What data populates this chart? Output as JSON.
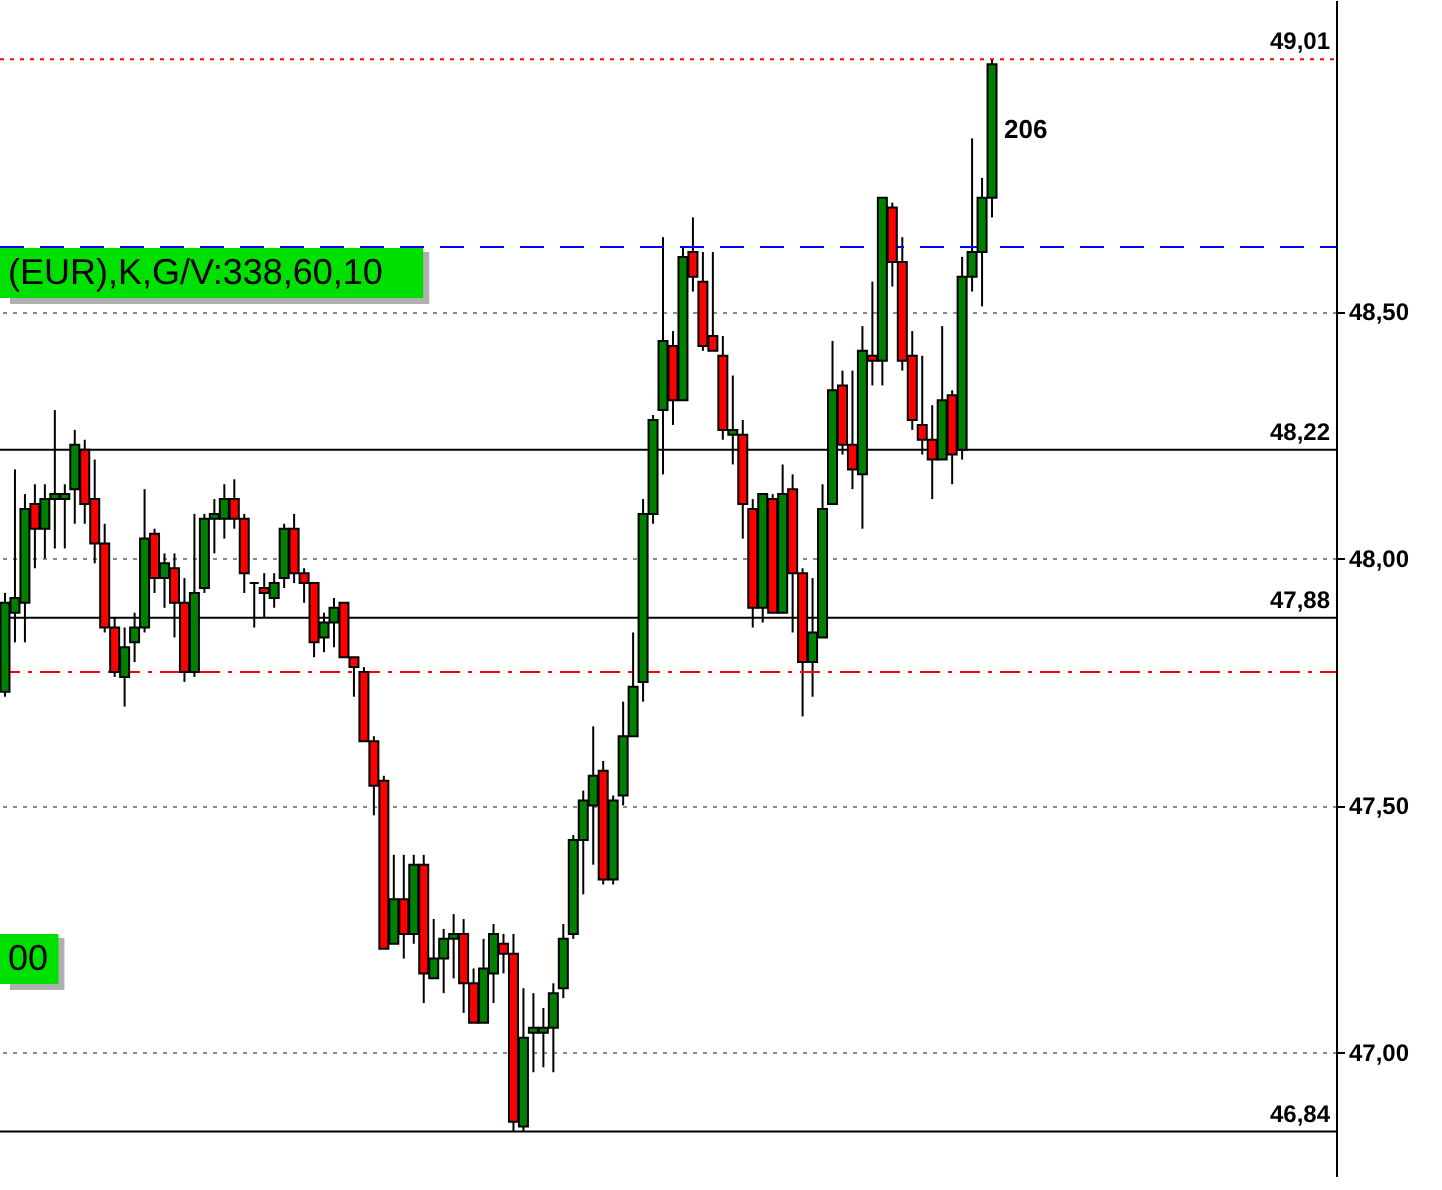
{
  "chart_data": {
    "type": "candlestick",
    "categories": [
      null,
      null,
      null,
      null,
      null,
      null,
      null,
      null,
      null,
      null,
      null,
      null,
      null,
      null,
      null,
      null,
      null,
      null,
      null,
      null,
      null,
      null,
      null,
      null,
      null,
      null,
      null,
      null,
      null,
      null,
      null,
      null,
      null,
      null,
      null,
      null,
      null,
      null,
      null,
      null,
      null,
      null,
      null,
      null,
      null,
      null,
      null,
      null,
      null,
      null,
      null,
      null,
      null,
      null,
      null,
      null,
      null,
      null,
      null,
      null,
      null,
      null,
      null,
      null,
      null,
      null,
      null,
      null,
      null,
      null,
      null,
      null,
      null,
      null,
      null,
      null,
      null,
      null,
      null,
      null,
      null,
      null,
      null,
      null,
      null,
      null,
      null,
      null,
      null,
      null,
      null,
      null,
      null,
      null,
      null,
      null,
      null,
      null,
      null,
      null,
      null,
      null,
      null,
      null,
      null,
      null,
      null,
      null,
      null,
      null,
      null,
      null,
      null,
      null,
      null,
      null,
      null,
      null,
      null,
      null,
      null,
      null,
      null,
      null,
      null,
      null,
      null,
      null,
      null,
      null,
      null,
      null,
      null,
      null
    ],
    "ohlc": [
      [
        47.73,
        47.93,
        47.72,
        47.91
      ],
      [
        47.89,
        48.18,
        47.83,
        47.92
      ],
      [
        47.91,
        48.13,
        47.83,
        48.1
      ],
      [
        48.11,
        48.15,
        47.98,
        48.06
      ],
      [
        48.06,
        48.15,
        48.0,
        48.12
      ],
      [
        48.12,
        48.3,
        48.02,
        48.13
      ],
      [
        48.12,
        48.15,
        48.02,
        48.13
      ],
      [
        48.14,
        48.26,
        48.07,
        48.23
      ],
      [
        48.22,
        48.24,
        48.07,
        48.11
      ],
      [
        48.12,
        48.2,
        47.99,
        48.03
      ],
      [
        48.03,
        48.07,
        47.85,
        47.86
      ],
      [
        47.86,
        47.88,
        47.76,
        47.77
      ],
      [
        47.76,
        47.86,
        47.7,
        47.82
      ],
      [
        47.83,
        47.89,
        47.79,
        47.86
      ],
      [
        47.86,
        48.14,
        47.85,
        48.04
      ],
      [
        48.05,
        48.06,
        47.93,
        47.96
      ],
      [
        47.96,
        48.01,
        47.9,
        47.99
      ],
      [
        47.98,
        48.01,
        47.84,
        47.91
      ],
      [
        47.91,
        47.96,
        47.75,
        47.77
      ],
      [
        47.77,
        48.09,
        47.76,
        47.93
      ],
      [
        47.94,
        48.09,
        47.93,
        48.08
      ],
      [
        48.08,
        48.12,
        48.01,
        48.09
      ],
      [
        48.08,
        48.15,
        48.04,
        48.12
      ],
      [
        48.12,
        48.16,
        48.06,
        48.08
      ],
      [
        48.08,
        48.09,
        47.93,
        47.97
      ],
      [
        47.95,
        47.95,
        47.86,
        47.95
      ],
      [
        47.94,
        47.97,
        47.88,
        47.93
      ],
      [
        47.92,
        47.97,
        47.9,
        47.95
      ],
      [
        47.96,
        48.07,
        47.94,
        48.06
      ],
      [
        48.06,
        48.09,
        47.95,
        47.97
      ],
      [
        47.97,
        47.98,
        47.91,
        47.95
      ],
      [
        47.95,
        47.95,
        47.8,
        47.83
      ],
      [
        47.84,
        47.89,
        47.81,
        47.87
      ],
      [
        47.87,
        47.92,
        47.82,
        47.9
      ],
      [
        47.91,
        47.91,
        47.8,
        47.8
      ],
      [
        47.8,
        47.8,
        47.72,
        47.78
      ],
      [
        47.77,
        47.78,
        47.63,
        47.63
      ],
      [
        47.63,
        47.64,
        47.48,
        47.54
      ],
      [
        47.55,
        47.56,
        47.21,
        47.21
      ],
      [
        47.22,
        47.4,
        47.22,
        47.31
      ],
      [
        47.31,
        47.4,
        47.19,
        47.24
      ],
      [
        47.24,
        47.4,
        47.22,
        47.38
      ],
      [
        47.38,
        47.4,
        47.1,
        47.16
      ],
      [
        47.15,
        47.27,
        47.15,
        47.19
      ],
      [
        47.19,
        47.25,
        47.12,
        47.23
      ],
      [
        47.23,
        47.28,
        47.15,
        47.24
      ],
      [
        47.24,
        47.27,
        47.08,
        47.14
      ],
      [
        47.14,
        47.17,
        47.06,
        47.06
      ],
      [
        47.06,
        47.23,
        47.06,
        47.17
      ],
      [
        47.16,
        47.26,
        47.1,
        47.24
      ],
      [
        47.22,
        47.24,
        47.16,
        47.2
      ],
      [
        47.2,
        47.24,
        46.84,
        46.86
      ],
      [
        46.85,
        47.13,
        46.84,
        47.03
      ],
      [
        47.04,
        47.12,
        46.96,
        47.05
      ],
      [
        47.04,
        47.09,
        46.97,
        47.05
      ],
      [
        47.05,
        47.14,
        46.96,
        47.12
      ],
      [
        47.13,
        47.26,
        47.11,
        47.23
      ],
      [
        47.24,
        47.44,
        47.23,
        47.43
      ],
      [
        47.43,
        47.53,
        47.32,
        47.51
      ],
      [
        47.5,
        47.66,
        47.38,
        47.56
      ],
      [
        47.57,
        47.59,
        47.34,
        47.35
      ],
      [
        47.35,
        47.52,
        47.34,
        47.51
      ],
      [
        47.52,
        47.71,
        47.5,
        47.64
      ],
      [
        47.64,
        47.85,
        47.64,
        47.74
      ],
      [
        47.75,
        48.12,
        47.71,
        48.09
      ],
      [
        48.09,
        48.29,
        48.07,
        48.28
      ],
      [
        48.3,
        48.65,
        48.17,
        48.44
      ],
      [
        48.43,
        48.46,
        48.27,
        48.32
      ],
      [
        48.32,
        48.63,
        48.32,
        48.61
      ],
      [
        48.62,
        48.69,
        48.54,
        48.57
      ],
      [
        48.56,
        48.62,
        48.42,
        48.43
      ],
      [
        48.45,
        48.62,
        48.42,
        48.42
      ],
      [
        48.41,
        48.45,
        48.24,
        48.26
      ],
      [
        48.25,
        48.37,
        48.19,
        48.26
      ],
      [
        48.25,
        48.28,
        48.04,
        48.11
      ],
      [
        48.1,
        48.12,
        47.86,
        47.9
      ],
      [
        47.9,
        48.13,
        47.87,
        48.13
      ],
      [
        48.12,
        48.13,
        47.89,
        47.89
      ],
      [
        47.89,
        48.19,
        47.89,
        48.13
      ],
      [
        48.14,
        48.17,
        47.85,
        47.97
      ],
      [
        47.97,
        47.98,
        47.68,
        47.79
      ],
      [
        47.79,
        47.96,
        47.72,
        47.85
      ],
      [
        47.84,
        48.15,
        47.84,
        48.1
      ],
      [
        48.11,
        48.44,
        48.11,
        48.34
      ],
      [
        48.35,
        48.38,
        48.21,
        48.23
      ],
      [
        48.23,
        48.38,
        48.14,
        48.18
      ],
      [
        48.17,
        48.47,
        48.06,
        48.42
      ],
      [
        48.41,
        48.56,
        48.35,
        48.4
      ],
      [
        48.4,
        48.73,
        48.35,
        48.73
      ],
      [
        48.71,
        48.72,
        48.55,
        48.6
      ],
      [
        48.6,
        48.65,
        48.38,
        48.4
      ],
      [
        48.41,
        48.46,
        48.26,
        48.28
      ],
      [
        48.27,
        48.41,
        48.21,
        48.24
      ],
      [
        48.24,
        48.31,
        48.12,
        48.2
      ],
      [
        48.2,
        48.47,
        48.2,
        48.32
      ],
      [
        48.33,
        48.34,
        48.15,
        48.21
      ],
      [
        48.22,
        48.61,
        48.2,
        48.57
      ],
      [
        48.57,
        48.85,
        48.54,
        48.62
      ],
      [
        48.62,
        48.77,
        48.51,
        48.73
      ],
      [
        48.73,
        49.01,
        48.69,
        49.0
      ],
      null,
      null,
      null,
      null,
      null,
      null,
      null,
      null,
      null,
      null,
      null,
      null,
      null,
      null,
      null,
      null,
      null,
      null,
      null,
      null,
      null,
      null,
      null,
      null,
      null,
      null,
      null,
      null,
      null,
      null,
      null,
      null,
      null,
      null
    ],
    "ylim": [
      46.75,
      49.13
    ],
    "yticks": [
      {
        "value": 47.0,
        "label": "47,00"
      },
      {
        "value": 47.5,
        "label": "47,50"
      },
      {
        "value": 48.0,
        "label": "48,00"
      },
      {
        "value": 48.5,
        "label": "48,50"
      }
    ],
    "grid": "y",
    "tick_labels": "y",
    "ref_lines": [
      {
        "axis": "y",
        "value": 49.01,
        "label": "49,01",
        "color": "#ff0000",
        "line_style": "dotted"
      },
      {
        "axis": "y",
        "value": 48.63,
        "color": "#0000ff",
        "line_style": "dashed"
      },
      {
        "axis": "y",
        "value": 48.22,
        "label": "48,22",
        "color": "#000000",
        "line_style": "solid"
      },
      {
        "axis": "y",
        "value": 47.88,
        "label": "47,88",
        "color": "#000000",
        "line_style": "solid"
      },
      {
        "axis": "y",
        "value": 47.77,
        "color": "#ff0000",
        "line_style": "dashdot"
      },
      {
        "axis": "y",
        "value": 46.84,
        "label": "46,84",
        "color": "#000000",
        "line_style": "solid"
      }
    ],
    "annotations": [
      "(EUR),K,G/V:338,60,10",
      "00",
      "206"
    ]
  }
}
